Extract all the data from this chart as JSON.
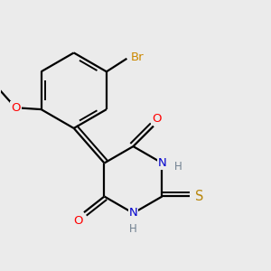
{
  "bg_color": "#ebebeb",
  "bond_color": "#000000",
  "bond_width": 1.6,
  "atom_colors": {
    "C": "#000000",
    "N": "#0000cd",
    "O": "#ff0000",
    "S": "#b8860b",
    "Br": "#cc8800",
    "H": "#708090"
  },
  "font_size": 9.5
}
